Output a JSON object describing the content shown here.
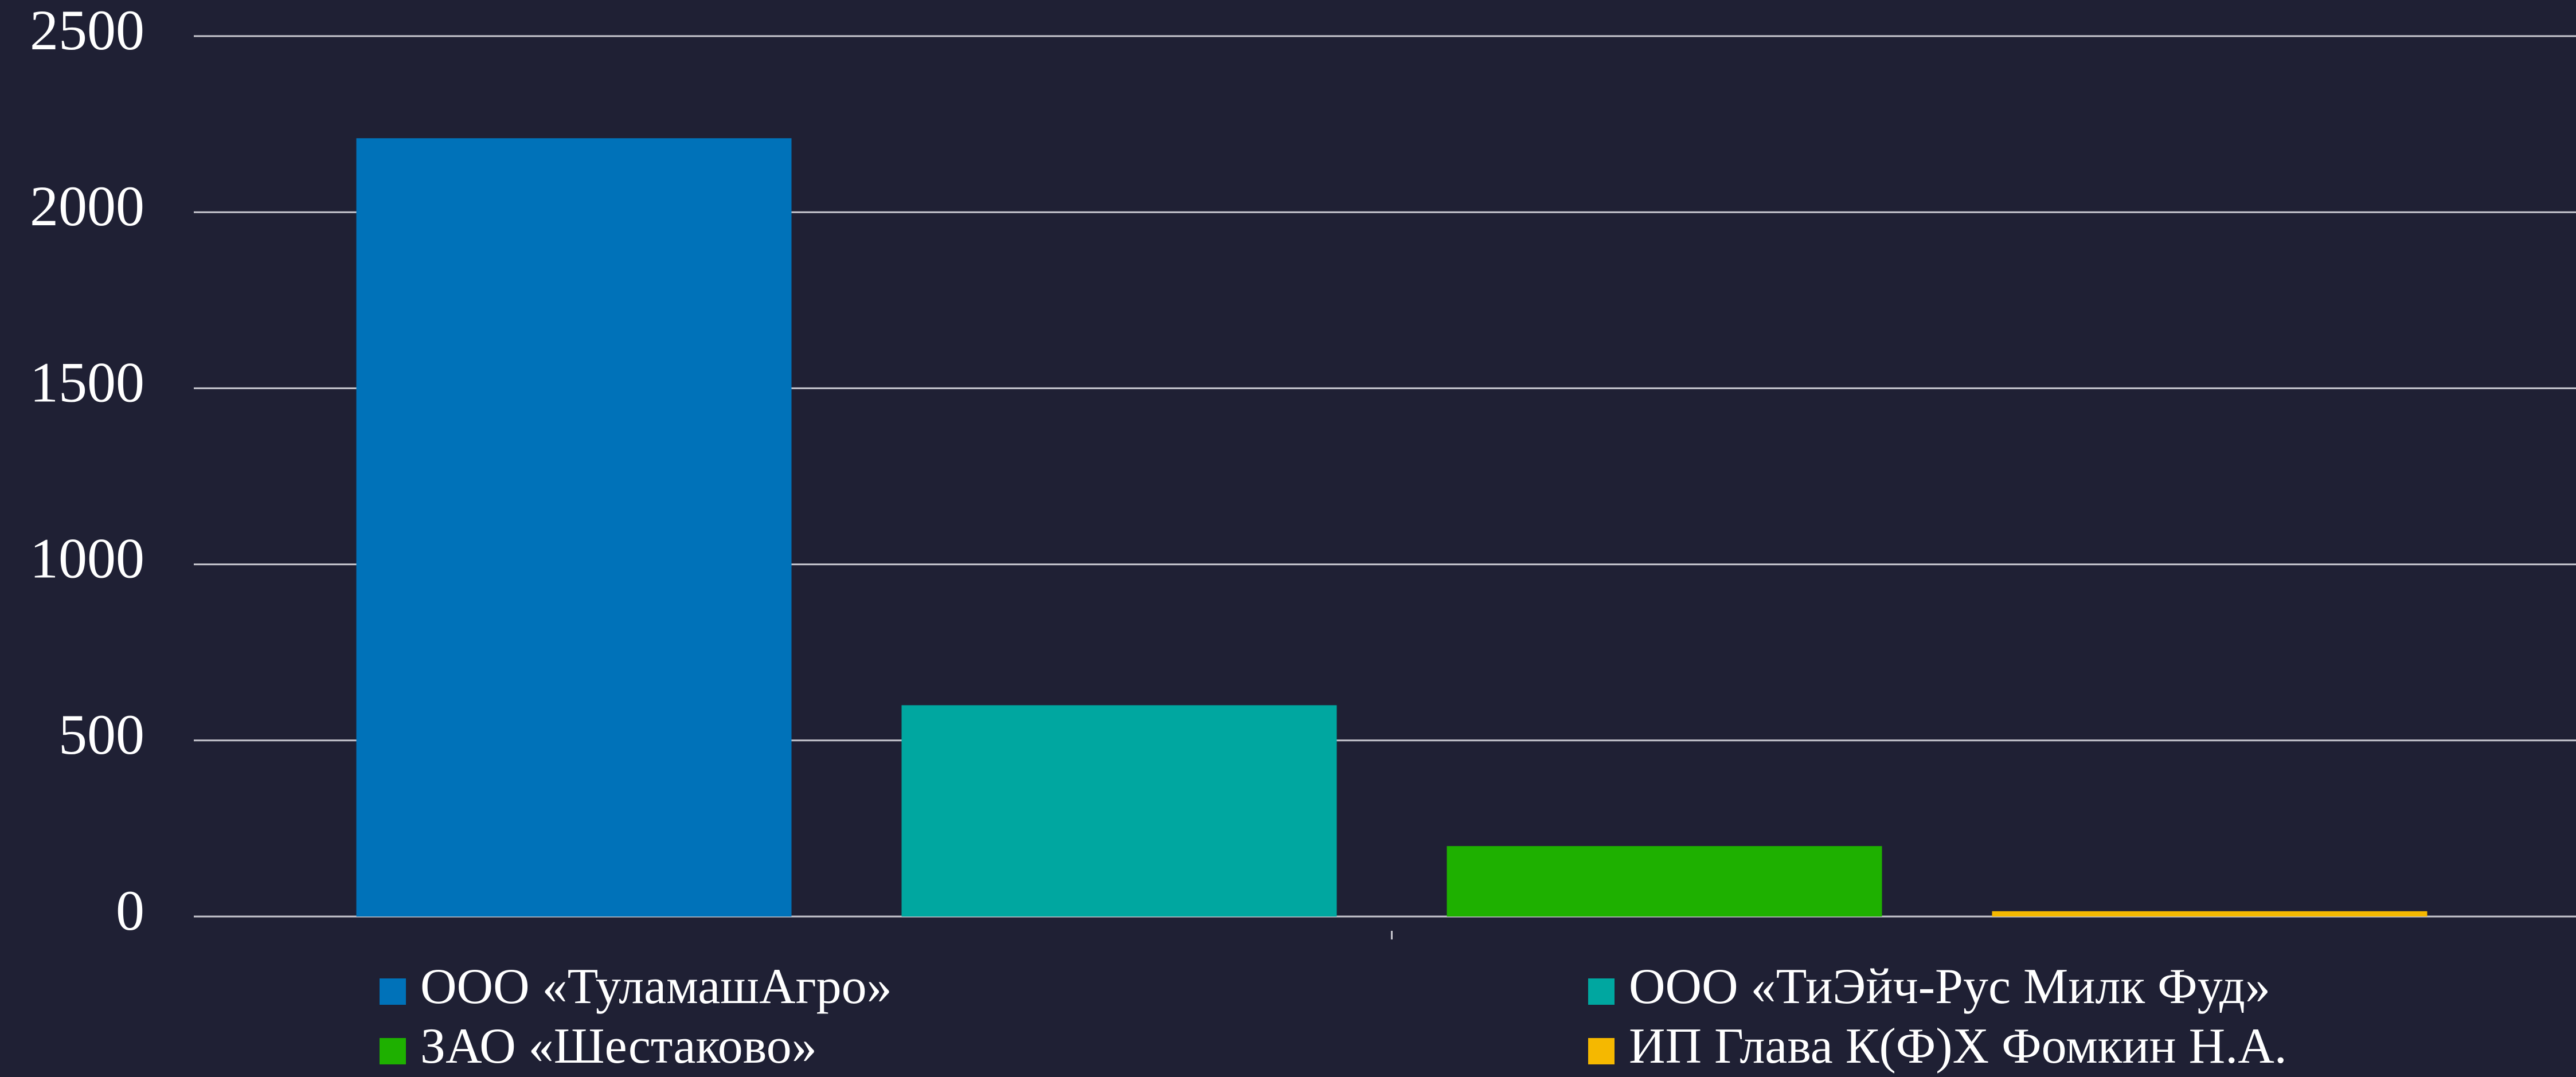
{
  "chart_data": {
    "type": "bar",
    "categories": [
      null
    ],
    "series": [
      {
        "name": "ООО «ТуламашАгро»",
        "color": "#0072b9",
        "values": [
          2210
        ]
      },
      {
        "name": "ООО «ТиЭйч-Рус Милк Фуд»",
        "color": "#00a7a0",
        "values": [
          600
        ]
      },
      {
        "name": "ЗАО «Шестаково»",
        "color": "#1eb000",
        "values": [
          200
        ]
      },
      {
        "name": "ИП Глава К(Ф)Х Фомкин Н.А.",
        "color": "#f5b800",
        "values": [
          15
        ]
      }
    ],
    "ylim": [
      0,
      2500
    ],
    "yticks": [
      0,
      500,
      1000,
      1500,
      2000,
      2500
    ],
    "grid": true,
    "legend": "bottom"
  }
}
